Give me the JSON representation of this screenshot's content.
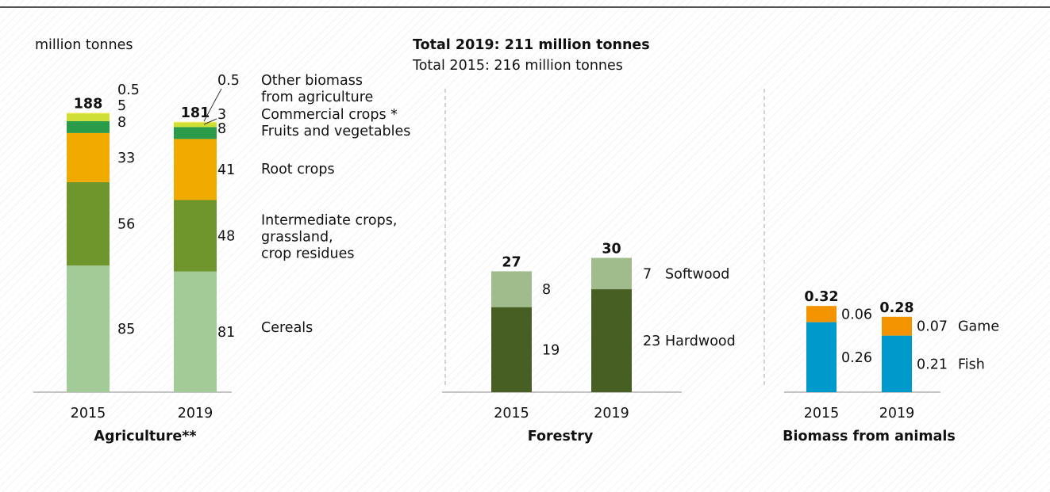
{
  "unit_label": "million tonnes",
  "totals": {
    "line1": "Total 2019: 211 million tonnes",
    "line2": "Total 2015: 216 million tonnes"
  },
  "colors": {
    "cereals": "#a3cb98",
    "intermediate": "#6f962c",
    "root": "#f0aa00",
    "fruits": "#2a9b48",
    "commercial": "#cfdf36",
    "other": "#f4ea4a",
    "softwood": "#a0bb8c",
    "hardwood": "#475f22",
    "game": "#f39300",
    "fish": "#0099cc",
    "axis": "#888888",
    "divider": "#aaaaaa"
  },
  "chart_data": [
    {
      "type": "bar",
      "stacked": true,
      "title": "Agriculture**",
      "categories": [
        "2015",
        "2019"
      ],
      "totals": [
        "188",
        "181"
      ],
      "series": [
        {
          "name": "Cereals",
          "values": [
            85,
            81
          ],
          "labels": [
            "85",
            "81"
          ],
          "color_key": "cereals"
        },
        {
          "name": "Intermediate crops,\ngrassland,\ncrop residues",
          "values": [
            56,
            48
          ],
          "labels": [
            "56",
            "48"
          ],
          "color_key": "intermediate"
        },
        {
          "name": "Root crops",
          "values": [
            33,
            41
          ],
          "labels": [
            "33",
            "41"
          ],
          "color_key": "root"
        },
        {
          "name": "Fruits and vegetables",
          "values": [
            8,
            8
          ],
          "labels": [
            "8",
            "8"
          ],
          "color_key": "fruits"
        },
        {
          "name": "Commercial crops *",
          "values": [
            5,
            3
          ],
          "labels": [
            "5",
            "3"
          ],
          "color_key": "commercial"
        },
        {
          "name": "Other biomass\nfrom agriculture",
          "values": [
            0.5,
            0.5
          ],
          "labels": [
            "0.5",
            "0.5"
          ],
          "color_key": "other"
        }
      ]
    },
    {
      "type": "bar",
      "stacked": true,
      "title": "Forestry",
      "categories": [
        "2015",
        "2019"
      ],
      "totals": [
        "27",
        "30"
      ],
      "series": [
        {
          "name": "Hardwood",
          "values": [
            19,
            23
          ],
          "labels": [
            "19",
            "23"
          ],
          "color_key": "hardwood"
        },
        {
          "name": "Softwood",
          "values": [
            8,
            7
          ],
          "labels": [
            "8",
            "7"
          ],
          "color_key": "softwood"
        }
      ]
    },
    {
      "type": "bar",
      "stacked": true,
      "title": "Biomass from animals",
      "categories": [
        "2015",
        "2019"
      ],
      "totals": [
        "0.32",
        "0.28"
      ],
      "series": [
        {
          "name": "Fish",
          "values": [
            0.26,
            0.21
          ],
          "labels": [
            "0.26",
            "0.21"
          ],
          "color_key": "fish"
        },
        {
          "name": "Game",
          "values": [
            0.06,
            0.07
          ],
          "labels": [
            "0.06",
            "0.07"
          ],
          "color_key": "game"
        }
      ]
    }
  ]
}
